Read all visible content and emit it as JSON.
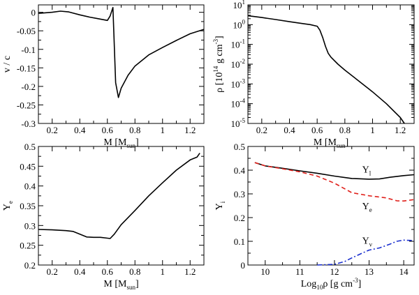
{
  "chart_data": [
    {
      "id": "velocity",
      "type": "line",
      "title": "",
      "xlabel": "M",
      "xunit": "M",
      "xunit_sub": "sun",
      "ylabel": "v / c",
      "xlim": [
        0.1,
        1.3
      ],
      "ylim": [
        -0.3,
        0.02
      ],
      "xscale": "linear",
      "yscale": "linear",
      "xticks": [
        0.2,
        0.4,
        0.6,
        0.8,
        1.0,
        1.2
      ],
      "xtick_labels": [
        "0.2",
        "0.4",
        "0.6",
        "0.8",
        "1",
        "1.2"
      ],
      "yticks": [
        0,
        -0.05,
        -0.1,
        -0.15,
        -0.2,
        -0.25,
        -0.3
      ],
      "ytick_labels": [
        "0",
        "-0.05",
        "-0.1",
        "-0.15",
        "-0.2",
        "-0.25",
        "-0.3"
      ],
      "series": [
        {
          "name": "v/c",
          "color": "#000000",
          "dash": "",
          "x": [
            0.1,
            0.2,
            0.26,
            0.32,
            0.4,
            0.47,
            0.53,
            0.6,
            0.62,
            0.64,
            0.66,
            0.68,
            0.7,
            0.75,
            0.8,
            0.9,
            1.0,
            1.1,
            1.2,
            1.3
          ],
          "y": [
            -0.003,
            0.0,
            0.003,
            0.001,
            -0.007,
            -0.013,
            -0.017,
            -0.022,
            -0.01,
            0.013,
            -0.19,
            -0.23,
            -0.205,
            -0.17,
            -0.145,
            -0.115,
            -0.095,
            -0.076,
            -0.058,
            -0.046
          ]
        }
      ]
    },
    {
      "id": "density",
      "type": "line",
      "title": "",
      "xlabel": "M",
      "xunit": "M",
      "xunit_sub": "sun",
      "ylabel": "ρ",
      "yunit": "10",
      "yunit_sup": "14",
      "yunit_tail": "g cm",
      "yunit_tail_sup": "-3",
      "xlim": [
        0.1,
        1.3
      ],
      "ylim": [
        -5,
        1
      ],
      "xscale": "linear",
      "yscale": "log10",
      "xticks": [
        0.2,
        0.4,
        0.6,
        0.8,
        1.0,
        1.2
      ],
      "xtick_labels": [
        "0.2",
        "0.4",
        "0.6",
        "0.8",
        "1",
        "1.2"
      ],
      "yticks": [
        1,
        0,
        -1,
        -2,
        -3,
        -4,
        -5
      ],
      "ytick_base": [
        "10",
        "10",
        "10",
        "10",
        "10",
        "10",
        "10"
      ],
      "ytick_exp": [
        "1",
        "0",
        "-1",
        "-2",
        "-3",
        "-4",
        "-5"
      ],
      "series": [
        {
          "name": "rho",
          "color": "#000000",
          "dash": "",
          "x": [
            0.1,
            0.2,
            0.3,
            0.4,
            0.5,
            0.55,
            0.6,
            0.62,
            0.64,
            0.66,
            0.68,
            0.7,
            0.75,
            0.8,
            0.9,
            1.0,
            1.1,
            1.2,
            1.23
          ],
          "log_y": [
            0.45,
            0.36,
            0.26,
            0.15,
            0.05,
            0.0,
            -0.08,
            -0.28,
            -0.65,
            -1.1,
            -1.45,
            -1.65,
            -2.0,
            -2.3,
            -2.85,
            -3.4,
            -4.0,
            -4.7,
            -5.0
          ]
        }
      ]
    },
    {
      "id": "ye",
      "type": "line",
      "title": "",
      "xlabel": "M",
      "xunit": "M",
      "xunit_sub": "sun",
      "ylabel": "Y",
      "ylabel_sub": "e",
      "xlim": [
        0.1,
        1.3
      ],
      "ylim": [
        0.2,
        0.5
      ],
      "xscale": "linear",
      "yscale": "linear",
      "xticks": [
        0.2,
        0.4,
        0.6,
        0.8,
        1.0,
        1.2
      ],
      "xtick_labels": [
        "0.2",
        "0.4",
        "0.6",
        "0.8",
        "1",
        "1.2"
      ],
      "yticks": [
        0.2,
        0.25,
        0.3,
        0.35,
        0.4,
        0.45,
        0.5
      ],
      "ytick_labels": [
        "0.2",
        "0.25",
        "0.3",
        "0.35",
        "0.4",
        "0.45",
        "0.5"
      ],
      "series": [
        {
          "name": "Ye",
          "color": "#000000",
          "dash": "",
          "x": [
            0.1,
            0.2,
            0.3,
            0.35,
            0.4,
            0.45,
            0.5,
            0.55,
            0.6,
            0.62,
            0.65,
            0.7,
            0.8,
            0.9,
            1.0,
            1.1,
            1.2,
            1.25,
            1.27
          ],
          "y": [
            0.29,
            0.289,
            0.287,
            0.285,
            0.278,
            0.271,
            0.27,
            0.27,
            0.268,
            0.267,
            0.278,
            0.302,
            0.338,
            0.375,
            0.408,
            0.44,
            0.466,
            0.473,
            0.483
          ]
        }
      ]
    },
    {
      "id": "abundances",
      "type": "line",
      "title": "",
      "xlabel": "Log",
      "xlabel_sub": "10",
      "xlabel_tail": "ρ [g cm",
      "xlabel_tail_sup": "-3",
      "xlabel_end": "]",
      "ylabel": "Y",
      "ylabel_sub": "i",
      "xlim": [
        9.5,
        14.3
      ],
      "ylim": [
        0,
        0.5
      ],
      "xscale": "linear",
      "yscale": "linear",
      "xticks": [
        10,
        11,
        12,
        13,
        14
      ],
      "xtick_labels": [
        "10",
        "11",
        "12",
        "13",
        "14"
      ],
      "yticks": [
        0,
        0.1,
        0.2,
        0.3,
        0.4,
        0.5
      ],
      "ytick_labels": [
        "0",
        "0.1",
        "0.2",
        "0.3",
        "0.4",
        "0.5"
      ],
      "series": [
        {
          "name": "Yl",
          "label": "Y",
          "label_sub": "l",
          "color": "#000000",
          "dash": "",
          "x": [
            9.7,
            10.0,
            10.5,
            11.0,
            11.5,
            12.0,
            12.5,
            13.0,
            13.3,
            13.6,
            14.0,
            14.3
          ],
          "y": [
            0.432,
            0.418,
            0.408,
            0.397,
            0.387,
            0.375,
            0.365,
            0.362,
            0.363,
            0.37,
            0.377,
            0.381
          ]
        },
        {
          "name": "Ye",
          "label": "Y",
          "label_sub": "e",
          "color": "#e0201b",
          "dash": "6,4",
          "x": [
            9.7,
            10.0,
            10.5,
            11.0,
            11.5,
            12.0,
            12.5,
            13.0,
            13.5,
            13.8,
            14.0,
            14.3
          ],
          "y": [
            0.432,
            0.418,
            0.406,
            0.393,
            0.375,
            0.345,
            0.305,
            0.292,
            0.283,
            0.271,
            0.27,
            0.276
          ]
        },
        {
          "name": "Ynu",
          "label": "Y",
          "label_sub": "ν",
          "color": "#1a2fcf",
          "dash": "7,3,2,3",
          "x": [
            11.5,
            12.0,
            12.3,
            12.5,
            12.8,
            13.0,
            13.3,
            13.6,
            13.8,
            14.0,
            14.3
          ],
          "y": [
            0.0,
            0.003,
            0.015,
            0.03,
            0.05,
            0.063,
            0.072,
            0.088,
            0.1,
            0.105,
            0.103
          ]
        }
      ]
    }
  ]
}
